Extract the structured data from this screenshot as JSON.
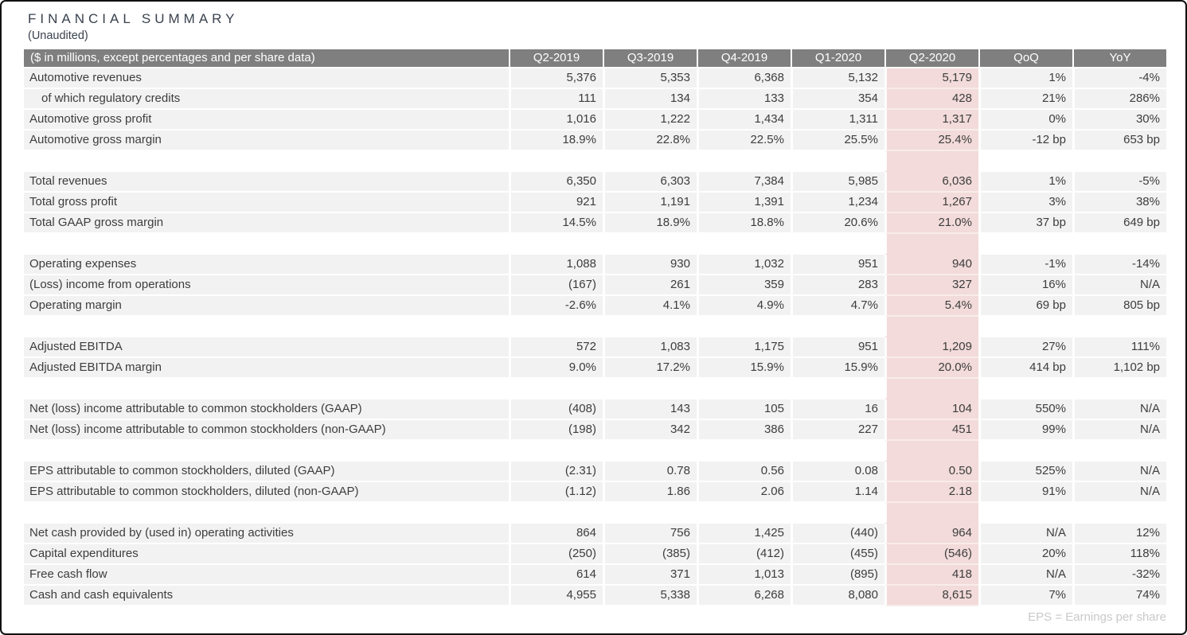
{
  "page": {
    "title": "FINANCIAL SUMMARY",
    "subtitle": "(Unaudited)",
    "footnote": "EPS = Earnings per share"
  },
  "colors": {
    "header_bg": "#7f7f7f",
    "row_bg": "#f2f2f2",
    "highlight_bg": "#f2dbda",
    "text": "#3d3d3d",
    "title_text": "#39424e",
    "footnote_text": "#c9c9c9"
  },
  "table": {
    "label_header": "($ in millions, except percentages and per share data)",
    "columns": [
      "Q2-2019",
      "Q3-2019",
      "Q4-2019",
      "Q1-2020",
      "Q2-2020",
      "QoQ",
      "YoY"
    ],
    "highlight_column": "Q2-2020",
    "sections": [
      {
        "rows": [
          {
            "label": "Automotive revenues",
            "indent": false,
            "values": [
              "5,376",
              "5,353",
              "6,368",
              "5,132",
              "5,179",
              "1%",
              "-4%"
            ]
          },
          {
            "label": "of which regulatory credits",
            "indent": true,
            "values": [
              "111",
              "134",
              "133",
              "354",
              "428",
              "21%",
              "286%"
            ]
          },
          {
            "label": "Automotive gross profit",
            "indent": false,
            "values": [
              "1,016",
              "1,222",
              "1,434",
              "1,311",
              "1,317",
              "0%",
              "30%"
            ]
          },
          {
            "label": "Automotive gross margin",
            "indent": false,
            "values": [
              "18.9%",
              "22.8%",
              "22.5%",
              "25.5%",
              "25.4%",
              "-12 bp",
              "653 bp"
            ]
          }
        ]
      },
      {
        "rows": [
          {
            "label": "Total revenues",
            "indent": false,
            "values": [
              "6,350",
              "6,303",
              "7,384",
              "5,985",
              "6,036",
              "1%",
              "-5%"
            ]
          },
          {
            "label": "Total gross profit",
            "indent": false,
            "values": [
              "921",
              "1,191",
              "1,391",
              "1,234",
              "1,267",
              "3%",
              "38%"
            ]
          },
          {
            "label": "Total GAAP gross margin",
            "indent": false,
            "values": [
              "14.5%",
              "18.9%",
              "18.8%",
              "20.6%",
              "21.0%",
              "37 bp",
              "649 bp"
            ]
          }
        ]
      },
      {
        "rows": [
          {
            "label": "Operating expenses",
            "indent": false,
            "values": [
              "1,088",
              "930",
              "1,032",
              "951",
              "940",
              "-1%",
              "-14%"
            ]
          },
          {
            "label": "(Loss) income from operations",
            "indent": false,
            "values": [
              "(167)",
              "261",
              "359",
              "283",
              "327",
              "16%",
              "N/A"
            ]
          },
          {
            "label": "Operating margin",
            "indent": false,
            "values": [
              "-2.6%",
              "4.1%",
              "4.9%",
              "4.7%",
              "5.4%",
              "69 bp",
              "805 bp"
            ]
          }
        ]
      },
      {
        "rows": [
          {
            "label": "Adjusted EBITDA",
            "indent": false,
            "values": [
              "572",
              "1,083",
              "1,175",
              "951",
              "1,209",
              "27%",
              "111%"
            ]
          },
          {
            "label": "Adjusted EBITDA margin",
            "indent": false,
            "values": [
              "9.0%",
              "17.2%",
              "15.9%",
              "15.9%",
              "20.0%",
              "414 bp",
              "1,102 bp"
            ]
          }
        ]
      },
      {
        "rows": [
          {
            "label": "Net (loss) income attributable to common stockholders (GAAP)",
            "indent": false,
            "values": [
              "(408)",
              "143",
              "105",
              "16",
              "104",
              "550%",
              "N/A"
            ]
          },
          {
            "label": "Net (loss) income attributable to common stockholders (non-GAAP)",
            "indent": false,
            "values": [
              "(198)",
              "342",
              "386",
              "227",
              "451",
              "99%",
              "N/A"
            ]
          }
        ]
      },
      {
        "rows": [
          {
            "label": "EPS attributable to common stockholders, diluted (GAAP)",
            "indent": false,
            "values": [
              "(2.31)",
              "0.78",
              "0.56",
              "0.08",
              "0.50",
              "525%",
              "N/A"
            ]
          },
          {
            "label": "EPS attributable to common stockholders, diluted (non-GAAP)",
            "indent": false,
            "values": [
              "(1.12)",
              "1.86",
              "2.06",
              "1.14",
              "2.18",
              "91%",
              "N/A"
            ]
          }
        ]
      },
      {
        "rows": [
          {
            "label": "Net cash provided by (used in) operating activities",
            "indent": false,
            "values": [
              "864",
              "756",
              "1,425",
              "(440)",
              "964",
              "N/A",
              "12%"
            ]
          },
          {
            "label": "Capital expenditures",
            "indent": false,
            "values": [
              "(250)",
              "(385)",
              "(412)",
              "(455)",
              "(546)",
              "20%",
              "118%"
            ]
          },
          {
            "label": "Free cash flow",
            "indent": false,
            "values": [
              "614",
              "371",
              "1,013",
              "(895)",
              "418",
              "N/A",
              "-32%"
            ]
          },
          {
            "label": "Cash and cash equivalents",
            "indent": false,
            "values": [
              "4,955",
              "5,338",
              "6,268",
              "8,080",
              "8,615",
              "7%",
              "74%"
            ]
          }
        ]
      }
    ]
  }
}
